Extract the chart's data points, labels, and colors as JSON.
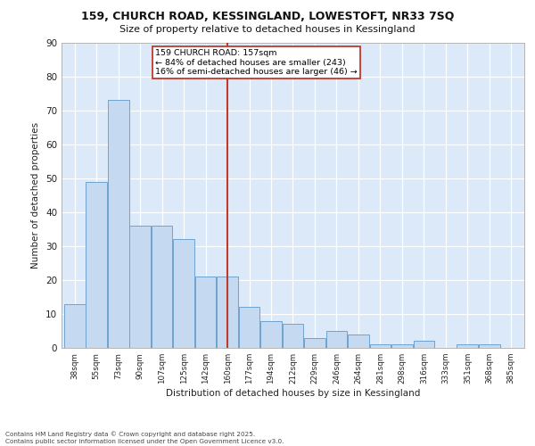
{
  "title1": "159, CHURCH ROAD, KESSINGLAND, LOWESTOFT, NR33 7SQ",
  "title2": "Size of property relative to detached houses in Kessingland",
  "xlabel": "Distribution of detached houses by size in Kessingland",
  "ylabel": "Number of detached properties",
  "categories": [
    "38sqm",
    "55sqm",
    "73sqm",
    "90sqm",
    "107sqm",
    "125sqm",
    "142sqm",
    "160sqm",
    "177sqm",
    "194sqm",
    "212sqm",
    "229sqm",
    "246sqm",
    "264sqm",
    "281sqm",
    "298sqm",
    "316sqm",
    "333sqm",
    "351sqm",
    "368sqm",
    "385sqm"
  ],
  "values": [
    13,
    49,
    73,
    36,
    36,
    32,
    21,
    21,
    12,
    8,
    7,
    3,
    5,
    4,
    1,
    1,
    2,
    0,
    1,
    1,
    0
  ],
  "bar_color": "#c5d9f0",
  "bar_edge_color": "#6ea3d0",
  "highlight_index": 7,
  "highlight_line_color": "#c0392b",
  "annotation_text": "159 CHURCH ROAD: 157sqm\n← 84% of detached houses are smaller (243)\n16% of semi-detached houses are larger (46) →",
  "annotation_box_color": "#ffffff",
  "annotation_box_edge": "#c0392b",
  "background_color": "#dce9f8",
  "fig_background": "#ffffff",
  "grid_color": "#ffffff",
  "footer1": "Contains HM Land Registry data © Crown copyright and database right 2025.",
  "footer2": "Contains public sector information licensed under the Open Government Licence v3.0.",
  "ylim": [
    0,
    90
  ],
  "yticks": [
    0,
    10,
    20,
    30,
    40,
    50,
    60,
    70,
    80,
    90
  ]
}
